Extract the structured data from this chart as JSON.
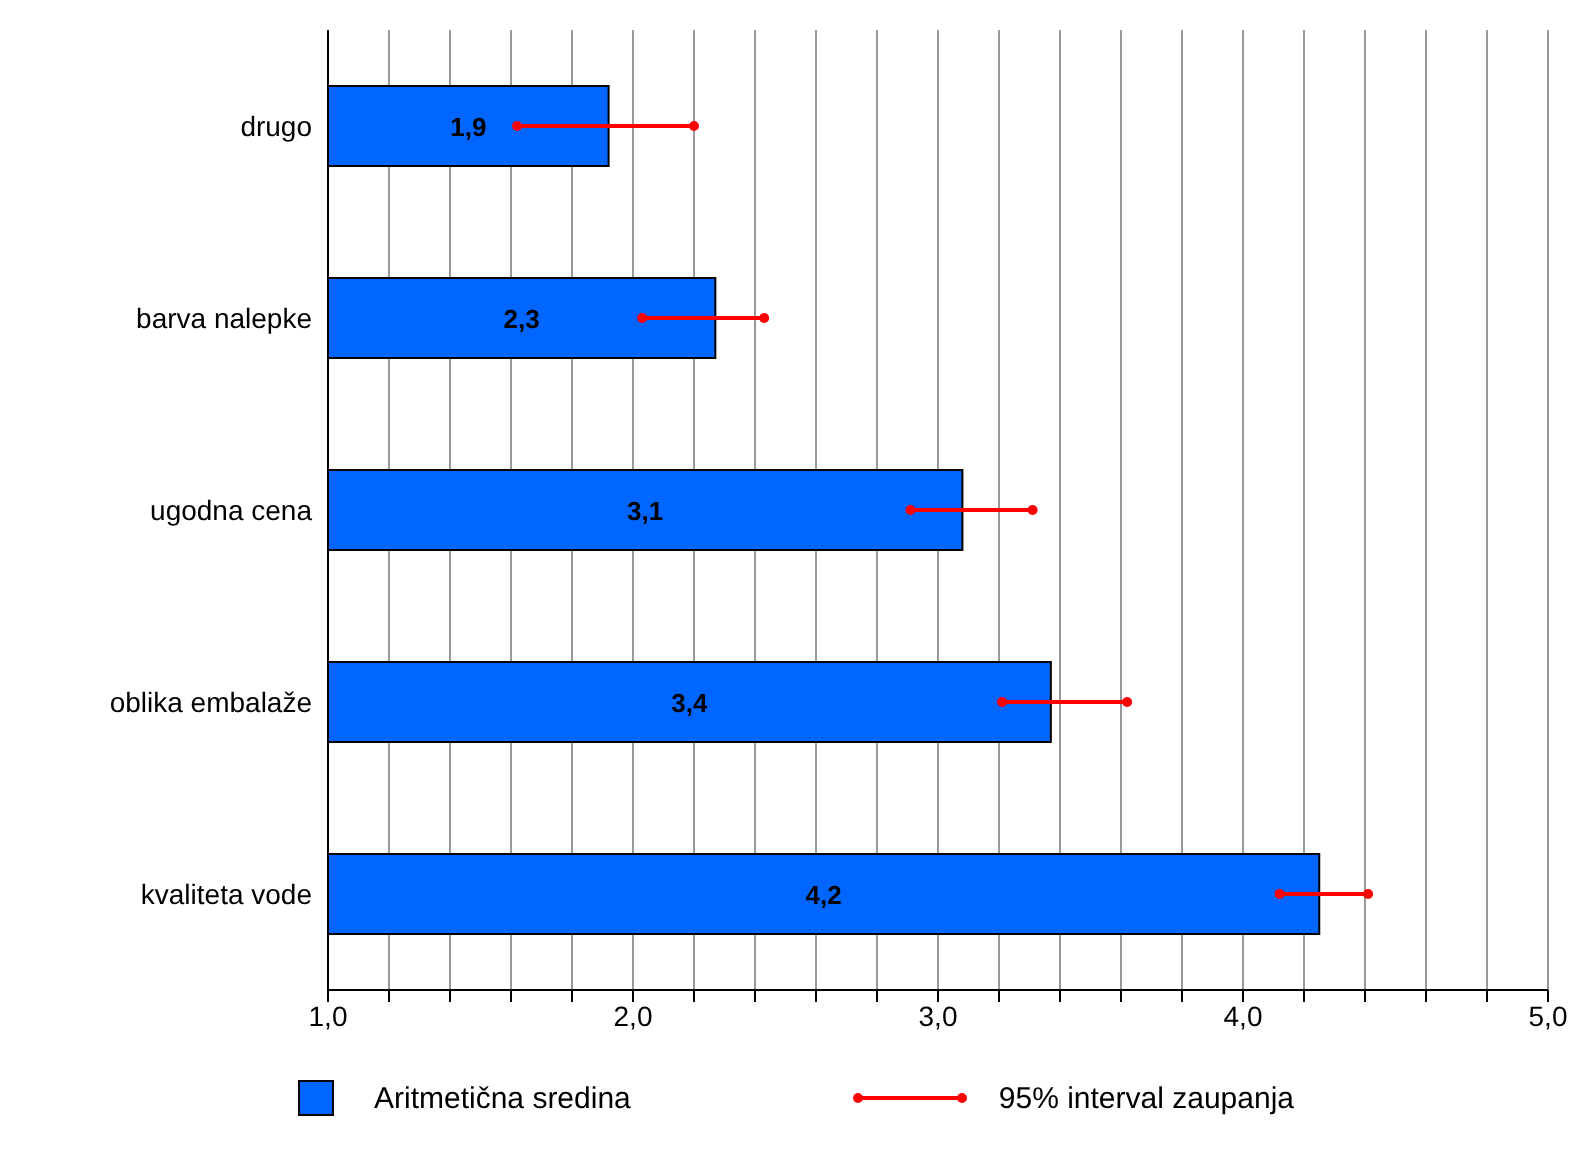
{
  "chart_data": {
    "type": "bar",
    "orientation": "horizontal",
    "categories": [
      "drugo",
      "barva nalepke",
      "ugodna cena",
      "oblika embalaže",
      "kvaliteta vode"
    ],
    "series": [
      {
        "name": "Aritmetična sredina",
        "color": "#0066ff",
        "values": [
          1.92,
          2.27,
          3.08,
          3.37,
          4.25
        ],
        "errors": [
          [
            1.62,
            2.2
          ],
          [
            2.03,
            2.43
          ],
          [
            2.91,
            3.31
          ],
          [
            3.21,
            3.62
          ],
          [
            4.12,
            4.41
          ]
        ],
        "value_labels": [
          "1,9",
          "2,3",
          "3,1",
          "3,4",
          "4,2"
        ]
      }
    ],
    "xlim": [
      1,
      5
    ],
    "xticks": [
      {
        "value": 1,
        "label": "1,0"
      },
      {
        "value": 1.2,
        "label": null
      },
      {
        "value": 1.4,
        "label": null
      },
      {
        "value": 1.6,
        "label": null
      },
      {
        "value": 1.8,
        "label": null
      },
      {
        "value": 2,
        "label": "2,0"
      },
      {
        "value": 2.2,
        "label": null
      },
      {
        "value": 2.4,
        "label": null
      },
      {
        "value": 2.6,
        "label": null
      },
      {
        "value": 2.8,
        "label": null
      },
      {
        "value": 3,
        "label": "3,0"
      },
      {
        "value": 3.2,
        "label": null
      },
      {
        "value": 3.4,
        "label": null
      },
      {
        "value": 3.6,
        "label": null
      },
      {
        "value": 3.8,
        "label": null
      },
      {
        "value": 4,
        "label": "4,0"
      },
      {
        "value": 4.2,
        "label": null
      },
      {
        "value": 4.4,
        "label": null
      },
      {
        "value": 4.6,
        "label": null
      },
      {
        "value": 4.8,
        "label": null
      },
      {
        "value": 5,
        "label": "5,0"
      }
    ],
    "grid": "x",
    "legend": "bottom",
    "annotations": [
      "95% interval zaupanja"
    ]
  }
}
